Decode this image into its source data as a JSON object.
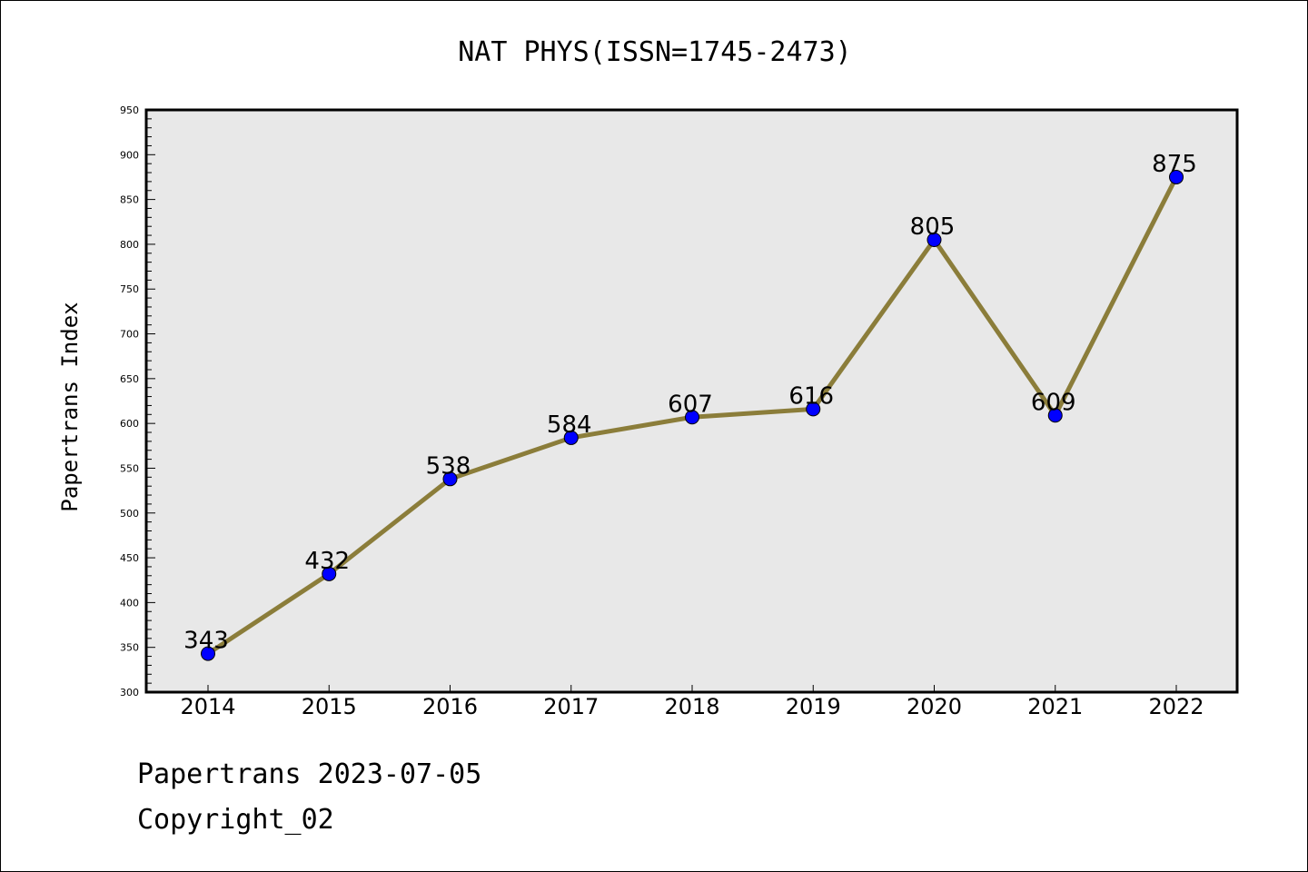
{
  "chart_data": {
    "type": "line",
    "title": "NAT PHYS(ISSN=1745-2473)",
    "xlabel": "",
    "ylabel": "Papertrans Index",
    "categories": [
      "2014",
      "2015",
      "2016",
      "2017",
      "2018",
      "2019",
      "2020",
      "2021",
      "2022"
    ],
    "series": [
      {
        "values": [
          343,
          432,
          538,
          584,
          607,
          616,
          805,
          609,
          875
        ],
        "data_labels": [
          "343",
          "432",
          "538",
          "584",
          "607",
          "616",
          "805",
          "609",
          "875"
        ]
      }
    ],
    "ylim": [
      300,
      950
    ],
    "yticks": [
      "300",
      "350",
      "400",
      "450",
      "500",
      "550",
      "600",
      "650",
      "700",
      "750",
      "800",
      "850",
      "900",
      "950"
    ],
    "grid": false,
    "legend": "none",
    "colors": {
      "line": "#8b7d3a",
      "marker": "#0000ff",
      "plot_background": "#e8e8e8"
    }
  },
  "footer": {
    "line1": "Papertrans 2023-07-05",
    "line2": "Copyright_02"
  }
}
